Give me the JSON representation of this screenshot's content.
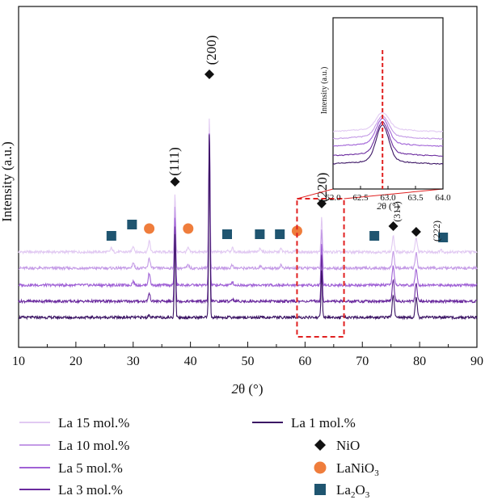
{
  "chart_data": {
    "type": "line",
    "title": "",
    "xlabel": "2θ (°)",
    "ylabel": "Intensity (a.u.)",
    "xlim": [
      10,
      90
    ],
    "xticks": [
      "10",
      "20",
      "30",
      "40",
      "50",
      "60",
      "70",
      "80",
      "90"
    ],
    "grid": false,
    "legend_position": "bottom",
    "series": [
      {
        "name": "La 15 mol.%",
        "color": "#e1c9f2",
        "peaks": [
          [
            26.2,
            0.05
          ],
          [
            30.0,
            0.08
          ],
          [
            32.8,
            0.14
          ],
          [
            37.3,
            0.75
          ],
          [
            39.6,
            0.05
          ],
          [
            43.3,
            1.75
          ],
          [
            46.5,
            0.03
          ],
          [
            47.3,
            0.05
          ],
          [
            52.2,
            0.05
          ],
          [
            55.8,
            0.04
          ],
          [
            58.5,
            0.03
          ],
          [
            62.9,
            0.45
          ],
          [
            75.4,
            0.2
          ],
          [
            79.4,
            0.18
          ],
          [
            83.7,
            0.03
          ]
        ]
      },
      {
        "name": "La 10 mol.%",
        "color": "#c49be6",
        "peaks": [
          [
            30.0,
            0.07
          ],
          [
            32.8,
            0.13
          ],
          [
            37.3,
            0.8
          ],
          [
            39.6,
            0.04
          ],
          [
            43.3,
            1.8
          ],
          [
            47.3,
            0.04
          ],
          [
            52.2,
            0.03
          ],
          [
            55.8,
            0.04
          ],
          [
            62.9,
            0.5
          ],
          [
            75.4,
            0.22
          ],
          [
            79.4,
            0.2
          ]
        ]
      },
      {
        "name": "La 5 mol.%",
        "color": "#a062d6",
        "peaks": [
          [
            30.0,
            0.05
          ],
          [
            32.8,
            0.15
          ],
          [
            37.3,
            0.9
          ],
          [
            43.3,
            2.0
          ],
          [
            47.3,
            0.04
          ],
          [
            62.9,
            0.55
          ],
          [
            75.4,
            0.25
          ],
          [
            79.4,
            0.22
          ]
        ]
      },
      {
        "name": "La 3 mol.%",
        "color": "#6a2a9e",
        "peaks": [
          [
            32.8,
            0.1
          ],
          [
            37.3,
            1.0
          ],
          [
            43.3,
            2.2
          ],
          [
            47.3,
            0.03
          ],
          [
            62.9,
            0.6
          ],
          [
            75.4,
            0.28
          ],
          [
            79.4,
            0.24
          ]
        ]
      },
      {
        "name": "La 1 mol.%",
        "color": "#3b1464",
        "peaks": [
          [
            32.8,
            0.03
          ],
          [
            37.3,
            1.1
          ],
          [
            43.3,
            2.4
          ],
          [
            62.9,
            0.62
          ],
          [
            75.4,
            0.3
          ],
          [
            79.4,
            0.26
          ]
        ]
      }
    ],
    "phase_markers": [
      {
        "name": "NiO",
        "shape": "diamond",
        "color": "#111111",
        "x": [
          37.3,
          43.3,
          62.9,
          75.4,
          79.4
        ]
      },
      {
        "name": "LaNiO3",
        "shape": "circle",
        "color": "#ef7d3c",
        "x": [
          32.8,
          39.6,
          58.6
        ]
      },
      {
        "name": "La2O3",
        "shape": "square",
        "color": "#1f5570",
        "x": [
          26.2,
          29.8,
          46.4,
          52.1,
          55.6,
          72.1,
          84.1
        ]
      }
    ],
    "peak_labels": [
      {
        "text": "(111)",
        "x": 37.3
      },
      {
        "text": "(200)",
        "x": 43.3
      },
      {
        "text": "(220)",
        "x": 62.9
      },
      {
        "text": "(311)",
        "x": 75.4
      },
      {
        "text": "(222)",
        "x": 79.4
      }
    ],
    "highlight_box_x": [
      58.6,
      66.8
    ],
    "inset": {
      "xlabel": "2θ (°)",
      "ylabel": "Intensity (a.u.)",
      "xlim": [
        62.0,
        64.0
      ],
      "xticks": [
        "62.0",
        "62.5",
        "63.0",
        "63.5",
        "64.0"
      ],
      "reference_line_x": 62.9,
      "reference_line_color": "#e02020"
    }
  },
  "legend": {
    "items": [
      {
        "label": "La 15 mol.%",
        "kind": "line",
        "color": "#e1c9f2"
      },
      {
        "label": "La 10 mol.%",
        "kind": "line",
        "color": "#c49be6"
      },
      {
        "label": "La 5 mol.%",
        "kind": "line",
        "color": "#a062d6"
      },
      {
        "label": "La 3 mol.%",
        "kind": "line",
        "color": "#6a2a9e"
      },
      {
        "label": "La 1 mol.%",
        "kind": "line",
        "color": "#3b1464"
      },
      {
        "label": "NiO",
        "kind": "diamond",
        "color": "#111111"
      },
      {
        "label": "LaNiO",
        "sub": "3",
        "kind": "circle",
        "color": "#ef7d3c"
      },
      {
        "label": "La",
        "sub": "2",
        "tail": "O",
        "sub2": "3",
        "kind": "square",
        "color": "#1f5570"
      }
    ]
  }
}
